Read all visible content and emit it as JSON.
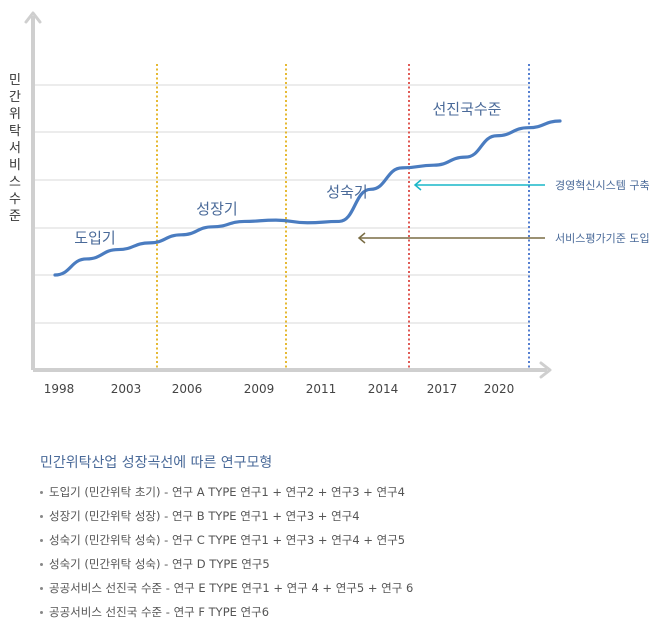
{
  "chart_data": {
    "type": "line",
    "ylabel": "민간위탁 서비스수준",
    "x_ticks": [
      "1998",
      "2003",
      "2006",
      "2009",
      "2011",
      "2014",
      "2017",
      "2020"
    ],
    "series": [
      {
        "values": [
          1.0,
          1.6,
          1.95,
          2.2,
          2.5,
          2.8,
          3.0,
          3.05,
          2.95,
          3.0,
          4.2,
          5.0,
          5.1,
          5.4,
          6.2,
          6.5,
          6.75
        ]
      }
    ],
    "phases": [
      "도입기",
      "성장기",
      "성숙기",
      "선진국수준"
    ],
    "phase_boundaries": [
      {
        "color": "#e0a800"
      },
      {
        "color": "#e0a800"
      },
      {
        "color": "#d9322b"
      },
      {
        "color": "#2a5fc4"
      }
    ],
    "annotations": [
      {
        "text": "경영혁신시스템 구축",
        "color": "#19b7c8"
      },
      {
        "text": "서비스평가기준 도입",
        "color": "#7a6d45"
      }
    ],
    "grid": true,
    "line_color": "#4a7cc0"
  },
  "legend": {
    "title": "민간위탁산업 성장곡선에 따른 연구모형",
    "items": [
      "도입기 (민간위탁 초기) - 연구 A TYPE 연구1 + 연구2 + 연구3 + 연구4",
      "성장기 (민간위탁 성장) - 연구 B TYPE 연구1 + 연구3 + 연구4",
      "성숙기 (민간위탁 성숙) - 연구 C TYPE 연구1 + 연구3 + 연구4 + 연구5",
      "성숙기 (민간위탁 성숙) - 연구 D TYPE 연구5",
      "공공서비스 선진국 수준 - 연구 E TYPE 연구1 + 연구 4 + 연구5 + 연구 6",
      "공공서비스 선진국 수준 - 연구 F TYPE  연구6"
    ]
  }
}
